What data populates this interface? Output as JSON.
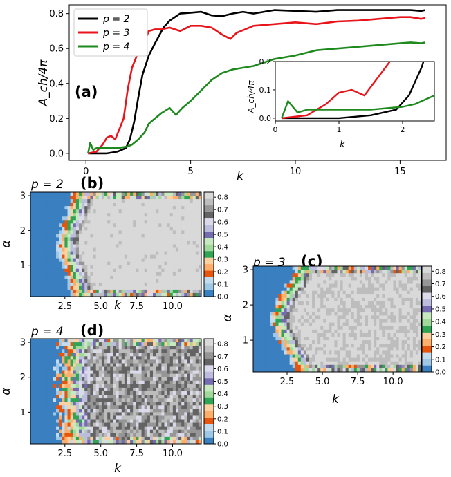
{
  "chart_data": [
    {
      "id": "a",
      "type": "line",
      "panel_label": "(a)",
      "xlabel": "k",
      "ylabel": "A_ch/4π",
      "xlim": [
        -0.8,
        17.2
      ],
      "ylim": [
        -0.04,
        0.85
      ],
      "xticks": [
        "0",
        "5",
        "10",
        "15"
      ],
      "yticks": [
        "0.0",
        "0.2",
        "0.4",
        "0.6",
        "0.8"
      ],
      "legend": "upper-left",
      "series": [
        {
          "name": "p = 2",
          "color": "#000000",
          "x": [
            0.1,
            1.0,
            1.5,
            1.9,
            2.1,
            2.3,
            2.5,
            2.7,
            3.0,
            3.3,
            3.7,
            4.0,
            4.5,
            5.0,
            5.5,
            6.0,
            6.5,
            7.0,
            7.5,
            8.0,
            9.0,
            10.0,
            11.0,
            12.0,
            13.0,
            14.0,
            15.0,
            15.5,
            16.0,
            16.2
          ],
          "y": [
            0.0,
            0.0,
            0.01,
            0.03,
            0.08,
            0.18,
            0.32,
            0.45,
            0.56,
            0.63,
            0.72,
            0.76,
            0.8,
            0.805,
            0.81,
            0.79,
            0.785,
            0.8,
            0.81,
            0.8,
            0.82,
            0.815,
            0.81,
            0.82,
            0.82,
            0.82,
            0.82,
            0.82,
            0.815,
            0.82
          ]
        },
        {
          "name": "p = 3",
          "color": "#e8141a",
          "x": [
            0.1,
            0.5,
            0.8,
            1.0,
            1.2,
            1.4,
            1.6,
            1.8,
            2.0,
            2.2,
            2.5,
            2.8,
            3.0,
            3.3,
            3.6,
            4.0,
            4.5,
            5.0,
            5.5,
            6.0,
            6.5,
            6.9,
            7.2,
            7.6,
            8.0,
            9.0,
            10.0,
            11.0,
            12.0,
            13.0,
            14.0,
            15.0,
            15.5,
            16.0,
            16.2
          ],
          "y": [
            0.0,
            0.01,
            0.05,
            0.09,
            0.1,
            0.08,
            0.14,
            0.2,
            0.37,
            0.49,
            0.58,
            0.64,
            0.7,
            0.71,
            0.71,
            0.72,
            0.7,
            0.73,
            0.73,
            0.72,
            0.68,
            0.655,
            0.69,
            0.71,
            0.73,
            0.74,
            0.75,
            0.74,
            0.755,
            0.76,
            0.77,
            0.78,
            0.78,
            0.77,
            0.775
          ]
        },
        {
          "name": "p = 4",
          "color": "#1e8a1e",
          "x": [
            0.1,
            0.2,
            0.35,
            0.5,
            1.0,
            1.5,
            2.0,
            2.2,
            2.5,
            2.8,
            3.0,
            3.3,
            3.6,
            4.0,
            4.3,
            4.6,
            5.0,
            5.5,
            6.0,
            6.5,
            7.0,
            7.5,
            8.0,
            9.0,
            10.0,
            11.0,
            12.0,
            13.0,
            14.0,
            15.0,
            15.5,
            16.0,
            16.2
          ],
          "y": [
            0.0,
            0.06,
            0.02,
            0.03,
            0.03,
            0.03,
            0.04,
            0.05,
            0.08,
            0.12,
            0.17,
            0.2,
            0.23,
            0.26,
            0.22,
            0.26,
            0.3,
            0.36,
            0.42,
            0.46,
            0.48,
            0.49,
            0.5,
            0.54,
            0.56,
            0.59,
            0.6,
            0.61,
            0.62,
            0.63,
            0.635,
            0.63,
            0.635
          ]
        }
      ],
      "inset": {
        "xlabel": "k",
        "ylabel": "A_ch/4π",
        "xlim": [
          0,
          2.5
        ],
        "ylim": [
          -0.01,
          0.2
        ],
        "xticks": [
          "0",
          "1",
          "2"
        ],
        "yticks": [
          "0.0",
          "0.1",
          "0.2"
        ]
      }
    },
    {
      "id": "b",
      "type": "heatmap",
      "title": "p = 2",
      "panel_label": "(b)",
      "xlabel": "k",
      "ylabel": "α",
      "xlim": [
        0.1,
        12.0
      ],
      "ylim": [
        0.1,
        3.1
      ],
      "xticks": [
        "2.5",
        "5.0",
        "7.5",
        "10.0"
      ],
      "yticks": [
        "1",
        "2",
        "3"
      ],
      "colorbar": {
        "range": [
          0,
          0.84
        ],
        "ticks": [
          "0.0",
          "0.1",
          "0.2",
          "0.3",
          "0.4",
          "0.5",
          "0.6",
          "0.7",
          "0.8"
        ]
      },
      "model": {
        "threshold_k": [
          3.8,
          -1.1,
          1.1
        ],
        "spread": 1.8,
        "max_value": 0.82,
        "roughness": 0.025
      }
    },
    {
      "id": "c",
      "type": "heatmap",
      "title": "p = 3",
      "panel_label": "(c)",
      "xlabel": "k",
      "ylabel": "α",
      "xlim": [
        0.1,
        12.0
      ],
      "ylim": [
        0.1,
        3.1
      ],
      "xticks": [
        "2.5",
        "5.0",
        "7.5",
        "10.0"
      ],
      "yticks": [
        "1",
        "2",
        "3"
      ],
      "colorbar": {
        "range": [
          0,
          0.84
        ],
        "ticks": [
          "0.0",
          "0.1",
          "0.2",
          "0.3",
          "0.4",
          "0.5",
          "0.6",
          "0.7",
          "0.8"
        ]
      },
      "model": {
        "threshold_k": [
          3.9,
          -1.9,
          1.0
        ],
        "spread": 1.6,
        "max_value": 0.8,
        "roughness": 0.04
      }
    },
    {
      "id": "d",
      "type": "heatmap",
      "title": "p = 4",
      "panel_label": "(d)",
      "xlabel": "k",
      "ylabel": "α",
      "xlim": [
        0.1,
        12.0
      ],
      "ylim": [
        0.1,
        3.1
      ],
      "xticks": [
        "2.5",
        "5.0",
        "7.5",
        "10.0"
      ],
      "yticks": [
        "1",
        "2",
        "3"
      ],
      "colorbar": {
        "range": [
          0,
          0.84
        ],
        "ticks": [
          "0.0",
          "0.1",
          "0.2",
          "0.3",
          "0.4",
          "0.5",
          "0.6",
          "0.7",
          "0.8"
        ]
      },
      "model": {
        "threshold_k": [
          3.6,
          -0.6,
          0.3
        ],
        "spread": 2.6,
        "max_value": 0.7,
        "roughness": 0.06
      }
    }
  ],
  "colormap": [
    "#3a7fc0",
    "#9ec8e6",
    "#c2dcee",
    "#e6550d",
    "#fdae6b",
    "#fdd0a2",
    "#31a354",
    "#a1d99b",
    "#c7e9c0",
    "#756bb1",
    "#bcbddc",
    "#dadaeb",
    "#636363",
    "#969696",
    "#bdbdbd",
    "#d9d9d9"
  ]
}
